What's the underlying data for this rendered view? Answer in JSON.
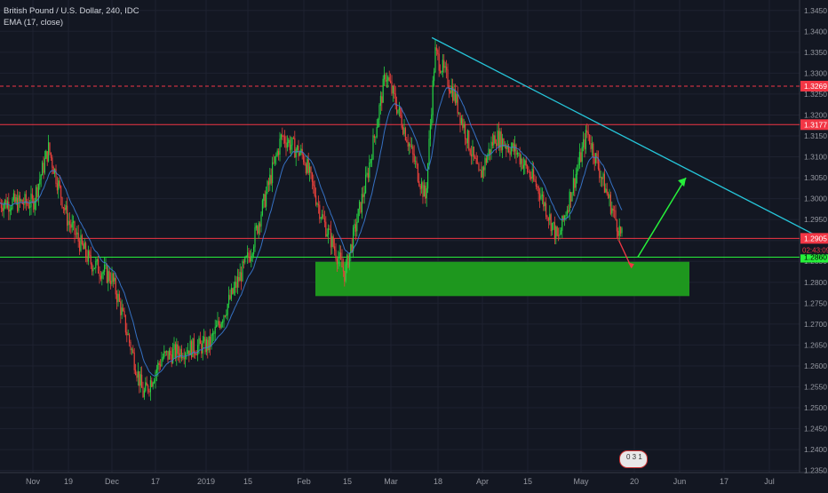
{
  "header": {
    "title": "British Pound / U.S. Dollar, 240, IDC",
    "indicator": "EMA (17, close)"
  },
  "chart_data": {
    "type": "line",
    "title": "British Pound / U.S. Dollar, 240, IDC",
    "indicator": "EMA (17, close)",
    "x_ticks": [
      "Nov",
      "19",
      "Dec",
      "17",
      "2019",
      "15",
      "Feb",
      "15",
      "Mar",
      "18",
      "Apr",
      "15",
      "May",
      "20",
      "Jun",
      "17",
      "Jul"
    ],
    "y_ticks": [
      "1.3450",
      "1.3400",
      "1.3350",
      "1.3300",
      "1.3250",
      "1.3200",
      "1.3150",
      "1.3100",
      "1.3050",
      "1.3000",
      "1.2950",
      "1.2900",
      "1.2850",
      "1.2800",
      "1.2750",
      "1.2700",
      "1.2650",
      "1.2600",
      "1.2550",
      "1.2500",
      "1.2450",
      "1.2400",
      "1.2350"
    ],
    "ylim": [
      1.2345,
      1.3475
    ],
    "price_labels": [
      {
        "text": "1.3269",
        "value": 1.3269,
        "color": "#f23645",
        "style": "dashed"
      },
      {
        "text": "1.3177",
        "value": 1.3177,
        "color": "#f23645",
        "style": "solid"
      },
      {
        "text": "1.2905",
        "value": 1.2905,
        "color": "#f23645",
        "style": "solid"
      },
      {
        "text": "1.2860",
        "value": 1.286,
        "color": "#26f03a",
        "style": "solid"
      }
    ],
    "countdown": "02:43:09",
    "support_zone": {
      "from": 1.2767,
      "to": 1.2849,
      "color": "#1f9e1f"
    },
    "approx_close_series": [
      {
        "t": "Nov 01",
        "v": 1.299
      },
      {
        "t": "Nov 06",
        "v": 1.312
      },
      {
        "t": "Nov 12",
        "v": 1.295
      },
      {
        "t": "Nov 19",
        "v": 1.285
      },
      {
        "t": "Nov 26",
        "v": 1.281
      },
      {
        "t": "Dec 03",
        "v": 1.276
      },
      {
        "t": "Dec 11",
        "v": 1.253
      },
      {
        "t": "Dec 17",
        "v": 1.262
      },
      {
        "t": "Dec 24",
        "v": 1.264
      },
      {
        "t": "Jan 02",
        "v": 1.265
      },
      {
        "t": "Jan 08",
        "v": 1.275
      },
      {
        "t": "Jan 15",
        "v": 1.287
      },
      {
        "t": "Jan 25",
        "v": 1.315
      },
      {
        "t": "Feb 01",
        "v": 1.31
      },
      {
        "t": "Feb 07",
        "v": 1.295
      },
      {
        "t": "Feb 14",
        "v": 1.282
      },
      {
        "t": "Feb 21",
        "v": 1.305
      },
      {
        "t": "Feb 27",
        "v": 1.33
      },
      {
        "t": "Mar 06",
        "v": 1.315
      },
      {
        "t": "Mar 12",
        "v": 1.3
      },
      {
        "t": "Mar 15",
        "v": 1.335
      },
      {
        "t": "Mar 21",
        "v": 1.325
      },
      {
        "t": "Mar 29",
        "v": 1.305
      },
      {
        "t": "Apr 05",
        "v": 1.315
      },
      {
        "t": "Apr 12",
        "v": 1.311
      },
      {
        "t": "Apr 19",
        "v": 1.302
      },
      {
        "t": "Apr 25",
        "v": 1.29
      },
      {
        "t": "May 03",
        "v": 1.316
      },
      {
        "t": "May 08",
        "v": 1.304
      },
      {
        "t": "May 14",
        "v": 1.2905
      }
    ],
    "trendline": {
      "from": {
        "t": "Mar 14",
        "v": 1.3385
      },
      "to": {
        "t": "Jul 15",
        "v": 1.2915
      },
      "color": "#26c6da"
    },
    "projection": [
      {
        "t": "May 13",
        "v": 1.29
      },
      {
        "t": "May 17",
        "v": 1.2835
      },
      {
        "t": "May 19",
        "v": 1.286
      },
      {
        "t": "Jun 03",
        "v": 1.305
      }
    ],
    "grid": true,
    "legend_position": "top-left"
  },
  "badge_text": "0 3 1"
}
